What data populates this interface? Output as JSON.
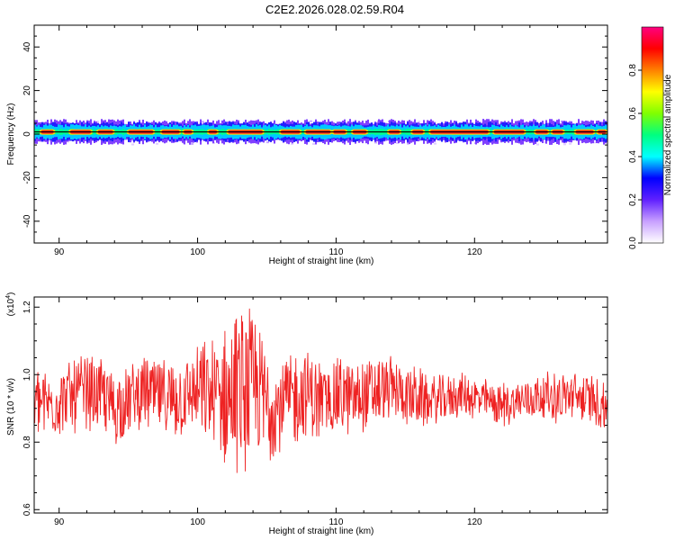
{
  "title": "C2E2.2026.028.02.59.R04",
  "chart_data": [
    {
      "type": "heatmap",
      "title": "C2E2.2026.028.02.59.R04",
      "xlabel": "Height of straight line (km)",
      "ylabel": "Frequency (Hz)",
      "xlim": [
        88.2,
        129.6
      ],
      "ylim": [
        -50,
        50
      ],
      "x_ticks": [
        90,
        100,
        110,
        120
      ],
      "y_ticks": [
        40,
        20,
        0,
        -20,
        -40
      ],
      "colorbar": {
        "label": "Normalized spectral amplitude",
        "range": [
          0,
          1
        ],
        "ticks": [
          0.0,
          0.2,
          0.4,
          0.6,
          0.8
        ],
        "colors": [
          "#ffffff",
          "#c8a0ff",
          "#6020ff",
          "#0000ff",
          "#00ffff",
          "#00ff80",
          "#80ff00",
          "#ffff00",
          "#ff8000",
          "#ff0000",
          "#ff0080"
        ]
      },
      "band": {
        "center_hz": 1,
        "halfwidth_hz": [
          2,
          4
        ],
        "peak_segments_km": [
          [
            88.7,
            89.6
          ],
          [
            90.8,
            92.3
          ],
          [
            92.8,
            93.9
          ],
          [
            95.0,
            96.8
          ],
          [
            97.4,
            98.7
          ],
          [
            99.0,
            99.6
          ],
          [
            100.8,
            101.4
          ],
          [
            102.2,
            104.7
          ],
          [
            106.0,
            107.4
          ],
          [
            107.8,
            109.6
          ],
          [
            109.8,
            110.7
          ],
          [
            111.2,
            112.2
          ],
          [
            113.8,
            114.6
          ],
          [
            115.5,
            116.3
          ],
          [
            116.8,
            121.0
          ],
          [
            121.4,
            123.6
          ],
          [
            124.4,
            125.3
          ],
          [
            125.6,
            126.4
          ],
          [
            127.3,
            128.6
          ],
          [
            128.9,
            129.5
          ]
        ]
      }
    },
    {
      "type": "line",
      "xlabel": "Height of straight line (km)",
      "ylabel": "SNR (10 * v/v)",
      "y_multiplier_label": "(x10",
      "y_multiplier_exp": "4",
      "y_multiplier_close": ")",
      "xlim": [
        88.2,
        129.6
      ],
      "ylim": [
        0.59,
        1.23
      ],
      "x_ticks": [
        90,
        100,
        110,
        120
      ],
      "y_ticks": [
        0.6,
        0.8,
        1.0,
        1.2
      ],
      "color": "#ee2222",
      "series": [
        {
          "x": [
            88.2,
            89.0,
            90.0,
            91.0,
            92.0,
            93.0,
            94.0,
            95.0,
            96.0,
            97.0,
            98.0,
            99.0,
            100.0,
            101.0,
            102.0,
            103.0,
            104.0,
            105.0,
            106.0,
            107.0,
            108.0,
            109.0,
            110.0,
            111.0,
            112.0,
            113.0,
            114.0,
            115.0,
            116.0,
            117.0,
            118.0,
            119.0,
            120.0,
            121.0,
            122.0,
            123.0,
            124.0,
            125.0,
            126.0,
            127.0,
            128.0,
            129.0,
            129.6
          ],
          "y": [
            0.93,
            0.91,
            0.92,
            0.94,
            0.95,
            0.94,
            0.9,
            0.92,
            0.95,
            0.94,
            0.92,
            0.93,
            0.95,
            0.94,
            0.93,
            0.95,
            0.96,
            0.92,
            0.91,
            0.93,
            0.94,
            0.92,
            0.94,
            0.93,
            0.94,
            0.95,
            0.96,
            0.94,
            0.93,
            0.92,
            0.93,
            0.94,
            0.93,
            0.92,
            0.91,
            0.92,
            0.93,
            0.94,
            0.93,
            0.94,
            0.93,
            0.92,
            0.9
          ],
          "amplitude": [
            0.09,
            0.1,
            0.09,
            0.1,
            0.1,
            0.1,
            0.11,
            0.1,
            0.1,
            0.1,
            0.11,
            0.11,
            0.12,
            0.16,
            0.2,
            0.22,
            0.21,
            0.17,
            0.14,
            0.13,
            0.12,
            0.11,
            0.11,
            0.1,
            0.1,
            0.09,
            0.09,
            0.08,
            0.08,
            0.07,
            0.06,
            0.06,
            0.06,
            0.06,
            0.06,
            0.06,
            0.06,
            0.06,
            0.07,
            0.06,
            0.07,
            0.07,
            0.09
          ]
        }
      ]
    }
  ]
}
